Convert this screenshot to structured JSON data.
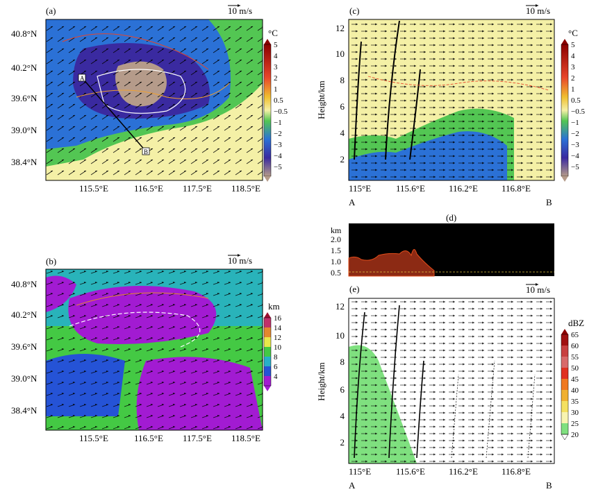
{
  "panels": {
    "a": {
      "label": "(a)",
      "wind_ref": "10 m/s",
      "lat_ticks": [
        "40.8°N",
        "40.2°N",
        "39.6°N",
        "39.0°N",
        "38.4°N"
      ],
      "lon_ticks": [
        "115.5°E",
        "116.5°E",
        "117.5°E",
        "118.5°E"
      ],
      "cbar_unit": "°C",
      "cbar_labels": [
        "5",
        "4",
        "3",
        "2",
        "1",
        "0.5",
        "−0.5",
        "−1",
        "−2",
        "−3",
        "−4",
        "−5"
      ],
      "point_a": "A",
      "point_b": "B",
      "colors": {
        "warm": "#f4f0a6",
        "green": "#53c653",
        "blue": "#2b71d6",
        "darkblue": "#3a2aa0",
        "brown": "#b59b8a"
      }
    },
    "b": {
      "label": "(b)",
      "wind_ref": "10 m/s",
      "lat_ticks": [
        "40.8°N",
        "40.2°N",
        "39.6°N",
        "39.0°N",
        "38.4°N"
      ],
      "lon_ticks": [
        "115.5°E",
        "116.5°E",
        "117.5°E",
        "118.5°E"
      ],
      "cbar_unit": "km",
      "cbar_labels": [
        "16",
        "14",
        "12",
        "10",
        "8",
        "6",
        "4"
      ],
      "colors": {
        "magenta": "#a21bd2",
        "blue": "#2553d6",
        "teal": "#27b0c8",
        "green": "#44c944",
        "yellow": "#e8e84a",
        "orange": "#e3882e"
      }
    },
    "c": {
      "label": "(c)",
      "wind_ref": "10 m/s",
      "y_title": "Height/km",
      "y_ticks": [
        "12",
        "10",
        "8",
        "6",
        "4",
        "2"
      ],
      "lon_ticks": [
        "115°E",
        "115.6°E",
        "116.2°E",
        "116.8°E"
      ],
      "end_a": "A",
      "end_b": "B",
      "cbar_unit": "°C",
      "cbar_labels": [
        "5",
        "4",
        "3",
        "2",
        "1",
        "0.5",
        "−0.5",
        "−1",
        "−2",
        "−3",
        "−4",
        "−5"
      ]
    },
    "d": {
      "label": "(d)",
      "y_title": "km",
      "y_ticks": [
        "2.0",
        "1.5",
        "1.0",
        "0.5"
      ]
    },
    "e": {
      "label": "(e)",
      "wind_ref": "10 m/s",
      "y_title": "Height/km",
      "y_ticks": [
        "12",
        "10",
        "8",
        "6",
        "4",
        "2"
      ],
      "lon_ticks": [
        "115°E",
        "115.6°E",
        "116.2°E",
        "116.8°E"
      ],
      "end_a": "A",
      "end_b": "B",
      "cbar_unit": "dBZ",
      "cbar_labels": [
        "65",
        "60",
        "55",
        "50",
        "45",
        "40",
        "35",
        "30",
        "25",
        "20"
      ]
    }
  }
}
